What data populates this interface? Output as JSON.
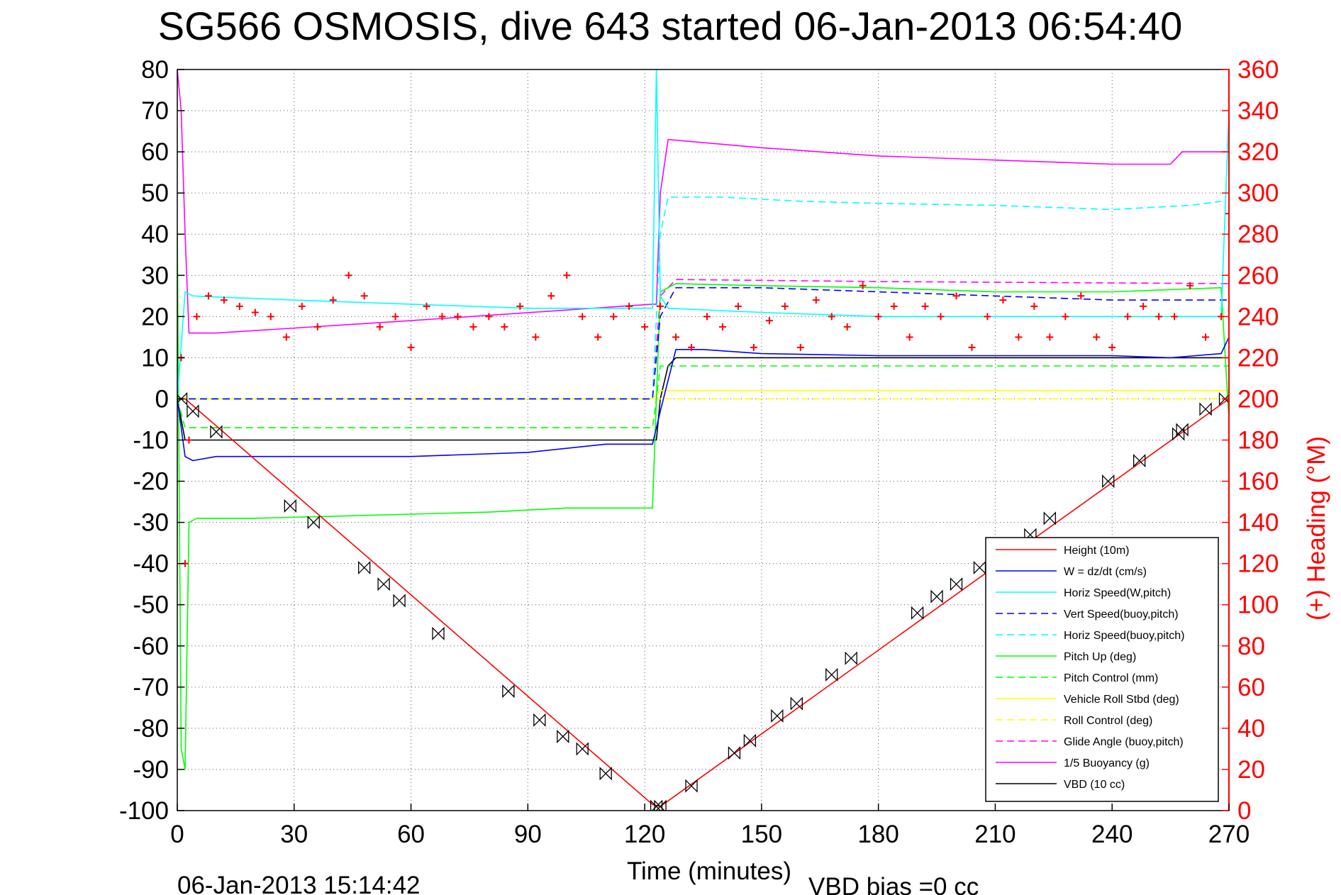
{
  "chart_data": {
    "type": "line",
    "title": "SG566 OSMOSIS, dive 643 started 06-Jan-2013 06:54:40",
    "xlabel": "Time (minutes)",
    "ylabel": "",
    "y2label": "(+) Heading (°M)",
    "footer_left": "06-Jan-2013 15:14:42",
    "footer_right": "VBD bias =0 cc",
    "xlim": [
      0,
      270
    ],
    "ylim": [
      -100,
      80
    ],
    "y2lim": [
      0,
      360
    ],
    "xticks": [
      "0",
      "30",
      "60",
      "90",
      "120",
      "150",
      "180",
      "210",
      "240",
      "270"
    ],
    "yticks": [
      "80",
      "70",
      "60",
      "50",
      "40",
      "30",
      "20",
      "10",
      "0",
      "-10",
      "-20",
      "-30",
      "-40",
      "-50",
      "-60",
      "-70",
      "-80",
      "-90",
      "-100"
    ],
    "y2ticks": [
      "360",
      "340",
      "320",
      "300",
      "280",
      "260",
      "240",
      "220",
      "200",
      "180",
      "160",
      "140",
      "120",
      "100",
      "80",
      "60",
      "40",
      "20",
      "0"
    ],
    "grid": true,
    "legend_position": "bottom-right",
    "legend": [
      {
        "label": "Height (10m)",
        "color": "#ff0000",
        "dash": "solid"
      },
      {
        "label": "W = dz/dt (cm/s)",
        "color": "#0000ff",
        "dash": "solid"
      },
      {
        "label": "Horiz Speed(W,pitch)",
        "color": "#00ffff",
        "dash": "solid"
      },
      {
        "label": "Vert Speed(buoy,pitch)",
        "color": "#0000ff",
        "dash": "dashed"
      },
      {
        "label": "Horiz Speed(buoy,pitch)",
        "color": "#00ffff",
        "dash": "dashed"
      },
      {
        "label": "Pitch Up (deg)",
        "color": "#00ff00",
        "dash": "solid"
      },
      {
        "label": "Pitch Control (mm)",
        "color": "#00ff00",
        "dash": "dashed"
      },
      {
        "label": "Vehicle Roll Stbd (deg)",
        "color": "#ffff00",
        "dash": "solid"
      },
      {
        "label": "Roll Control (deg)",
        "color": "#ffff00",
        "dash": "dashed"
      },
      {
        "label": "Glide Angle (buoy,pitch)",
        "color": "#ff00ff",
        "dash": "dashed"
      },
      {
        "label": "1/5 Buoyancy (g)",
        "color": "#ff00ff",
        "dash": "solid"
      },
      {
        "label": "VBD (10 cc)",
        "color": "#000000",
        "dash": "solid"
      }
    ],
    "series": [
      {
        "name": "Height (10m)",
        "color": "#ff0000",
        "dash": "solid",
        "x": [
          0,
          2,
          122,
          124,
          270
        ],
        "y": [
          0,
          0,
          -98.5,
          -99,
          0
        ]
      },
      {
        "name": "W = dz/dt (cm/s)",
        "color": "#0000ff",
        "dash": "solid",
        "x": [
          0,
          2,
          4,
          10,
          30,
          60,
          90,
          110,
          122,
          124,
          128,
          135,
          150,
          180,
          210,
          240,
          255,
          268,
          270
        ],
        "y": [
          0,
          -14,
          -15,
          -14,
          -14,
          -14,
          -13,
          -11,
          -11,
          -3,
          12,
          12,
          11,
          10.5,
          10.5,
          10.5,
          10,
          11,
          15
        ]
      },
      {
        "name": "Horiz Speed(W,pitch)",
        "color": "#00ffff",
        "dash": "solid",
        "x": [
          0,
          2,
          4,
          30,
          60,
          90,
          120,
          122,
          123,
          124,
          126,
          150,
          180,
          210,
          240,
          268,
          270
        ],
        "y": [
          0,
          26,
          25,
          24,
          23,
          22,
          22,
          22,
          80,
          25,
          22,
          21,
          20,
          20,
          20,
          20,
          70
        ]
      },
      {
        "name": "Vert Speed(buoy,pitch)",
        "color": "#0000ff",
        "dash": "dashed",
        "x": [
          0,
          2,
          122,
          124,
          128,
          150,
          180,
          210,
          240,
          270
        ],
        "y": [
          0,
          0,
          0,
          20,
          27,
          27,
          26,
          25,
          24,
          24
        ]
      },
      {
        "name": "Horiz Speed(buoy,pitch)",
        "color": "#00ffff",
        "dash": "dashed",
        "x": [
          0,
          2,
          122,
          124,
          126,
          140,
          160,
          180,
          210,
          240,
          260,
          268
        ],
        "y": [
          0,
          0,
          0,
          40,
          49,
          49,
          48,
          47.5,
          47,
          46,
          47,
          48
        ]
      },
      {
        "name": "Pitch Up (deg)",
        "color": "#00ff00",
        "dash": "solid",
        "x": [
          0,
          1,
          2,
          3,
          5,
          20,
          40,
          60,
          80,
          90,
          100,
          110,
          120,
          122,
          123,
          124,
          128,
          150,
          180,
          210,
          240,
          268,
          270
        ],
        "y": [
          40,
          -85,
          -90,
          -30,
          -29,
          -29,
          -28.5,
          -28,
          -27.5,
          -27,
          -26.5,
          -26.5,
          -26.5,
          -26.5,
          0,
          26,
          28,
          27.5,
          27,
          26,
          26,
          27,
          -5
        ]
      },
      {
        "name": "Pitch Control (mm)",
        "color": "#00ff00",
        "dash": "dashed",
        "x": [
          0,
          2,
          4,
          60,
          122,
          123,
          124,
          270
        ],
        "y": [
          0,
          -7,
          -7,
          -7,
          -7,
          0,
          8,
          8
        ]
      },
      {
        "name": "Vehicle Roll Stbd (deg)",
        "color": "#ffff00",
        "dash": "solid",
        "x": [
          0,
          2,
          122,
          124,
          270
        ],
        "y": [
          0,
          0,
          0,
          2,
          2
        ]
      },
      {
        "name": "Roll Control (deg)",
        "color": "#ffff00",
        "dash": "dashed",
        "x": [
          0,
          2,
          122,
          124,
          270
        ],
        "y": [
          0,
          0,
          0,
          0,
          0
        ]
      },
      {
        "name": "Glide Angle (buoy,pitch)",
        "color": "#ff00ff",
        "dash": "dashed",
        "x": [
          0,
          2,
          122,
          124,
          128,
          180,
          270
        ],
        "y": [
          0,
          0,
          0,
          25,
          29,
          28.5,
          28
        ]
      },
      {
        "name": "1/5 Buoyancy (g)",
        "color": "#ff00ff",
        "dash": "solid",
        "x": [
          0,
          1,
          2,
          3,
          10,
          60,
          122,
          123,
          124,
          126,
          150,
          180,
          210,
          240,
          255,
          256,
          258,
          268,
          270
        ],
        "y": [
          80,
          70,
          40,
          16,
          16,
          19,
          23,
          23,
          50,
          63,
          61,
          59,
          58,
          57,
          57,
          58,
          60,
          60,
          60
        ]
      },
      {
        "name": "VBD (10 cc)",
        "color": "#000000",
        "dash": "solid",
        "x": [
          0,
          2,
          122,
          123,
          124,
          126,
          128,
          150,
          180,
          210,
          240,
          268,
          270
        ],
        "y": [
          0,
          -10,
          -10,
          -10,
          0,
          8,
          10,
          10,
          10,
          10,
          10,
          10,
          10
        ]
      }
    ],
    "heading_series": {
      "name": "Heading (°M)",
      "color": "#ff0000",
      "marker": "+",
      "x": [
        1,
        2,
        3,
        5,
        8,
        12,
        16,
        20,
        24,
        28,
        32,
        36,
        40,
        44,
        48,
        52,
        56,
        60,
        64,
        68,
        72,
        76,
        80,
        84,
        88,
        92,
        96,
        100,
        104,
        108,
        112,
        116,
        120,
        124,
        128,
        132,
        136,
        140,
        144,
        148,
        152,
        156,
        160,
        164,
        168,
        172,
        176,
        180,
        184,
        188,
        192,
        196,
        200,
        204,
        208,
        212,
        216,
        220,
        224,
        228,
        232,
        236,
        240,
        244,
        248,
        252,
        256,
        260,
        264,
        268,
        270
      ],
      "y": [
        220,
        120,
        180,
        240,
        250,
        248,
        245,
        242,
        240,
        230,
        245,
        235,
        248,
        260,
        250,
        235,
        240,
        225,
        245,
        240,
        240,
        235,
        240,
        235,
        245,
        230,
        250,
        260,
        240,
        230,
        240,
        245,
        235,
        245,
        230,
        225,
        240,
        235,
        245,
        225,
        238,
        245,
        225,
        248,
        240,
        235,
        255,
        240,
        245,
        230,
        245,
        240,
        250,
        225,
        240,
        248,
        230,
        245,
        230,
        240,
        250,
        230,
        225,
        240,
        245,
        240,
        240,
        255,
        230,
        240,
        290
      ]
    },
    "waypoint_markers": {
      "name": "Sample markers",
      "color": "#000000",
      "x": [
        1,
        4,
        10,
        29,
        35,
        48,
        53,
        57,
        67,
        85,
        93,
        99,
        104,
        110,
        123,
        124,
        132,
        143,
        147,
        154,
        159,
        168,
        173,
        190,
        195,
        200,
        206,
        219,
        224,
        239,
        247,
        257,
        258,
        264,
        269
      ],
      "y": [
        0,
        -3,
        -8,
        -26,
        -30,
        -41,
        -45,
        -49,
        -57,
        -71,
        -78,
        -82,
        -85,
        -91,
        -99,
        -99,
        -94,
        -86,
        -83,
        -77,
        -74,
        -67,
        -63,
        -52,
        -48,
        -45,
        -41,
        -33,
        -29,
        -20,
        -15,
        -8.5,
        -7.5,
        -2.5,
        0
      ]
    }
  }
}
